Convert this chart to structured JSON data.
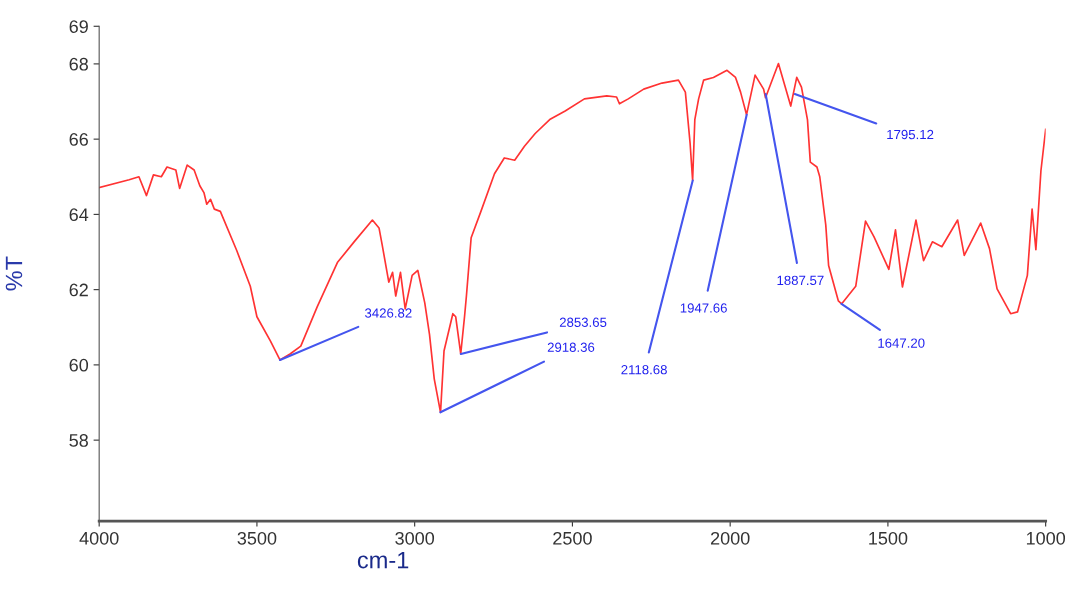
{
  "chart_data": {
    "type": "line",
    "xlabel": "cm-1",
    "ylabel": "%T",
    "xlim": [
      4000,
      1000
    ],
    "ylim": [
      55.85,
      69
    ],
    "xticks": [
      4000,
      3500,
      3000,
      2500,
      2000,
      1500,
      1000
    ],
    "yticks": [
      58,
      60,
      62,
      64,
      66,
      68,
      69
    ],
    "grid": false,
    "marker": "none",
    "line_style": "solid",
    "series": [
      {
        "color": "#ff3333",
        "x": [
          4000,
          3905,
          3874,
          3850,
          3828,
          3803,
          3785,
          3757,
          3745,
          3721,
          3699,
          3681,
          3668,
          3659,
          3647,
          3635,
          3616,
          3564,
          3521,
          3500,
          3457,
          3427,
          3395,
          3361,
          3309,
          3245,
          3192,
          3134,
          3113,
          3103,
          3082,
          3070,
          3060,
          3045,
          3030,
          3008,
          2990,
          2968,
          2953,
          2938,
          2918,
          2907,
          2879,
          2870,
          2854,
          2842,
          2836,
          2821,
          2790,
          2747,
          2716,
          2683,
          2652,
          2618,
          2572,
          2523,
          2462,
          2391,
          2360,
          2351,
          2323,
          2274,
          2216,
          2164,
          2142,
          2127,
          2119,
          2112,
          2100,
          2084,
          2053,
          2010,
          1983,
          1967,
          1948,
          1921,
          1894,
          1888,
          1847,
          1808,
          1789,
          1774,
          1755,
          1746,
          1725,
          1716,
          1697,
          1688,
          1657,
          1647,
          1602,
          1571,
          1544,
          1497,
          1476,
          1454,
          1411,
          1387,
          1359,
          1329,
          1279,
          1258,
          1206,
          1178,
          1154,
          1111,
          1089,
          1058,
          1043,
          1031,
          1015,
          1000
        ],
        "values": [
          64.71,
          64.92,
          65.0,
          64.5,
          65.05,
          65.0,
          65.26,
          65.18,
          64.69,
          65.31,
          65.18,
          64.76,
          64.58,
          64.27,
          64.4,
          64.14,
          64.08,
          63.04,
          62.09,
          61.28,
          60.63,
          60.13,
          60.29,
          60.5,
          61.54,
          62.72,
          63.27,
          63.85,
          63.64,
          63.19,
          62.2,
          62.46,
          61.83,
          62.46,
          61.49,
          62.38,
          62.51,
          61.65,
          60.81,
          59.63,
          58.74,
          60.37,
          61.36,
          61.28,
          60.29,
          61.28,
          61.83,
          63.38,
          64.08,
          65.08,
          65.5,
          65.44,
          65.81,
          66.15,
          66.52,
          66.75,
          67.07,
          67.15,
          67.12,
          66.94,
          67.07,
          67.33,
          67.49,
          67.57,
          67.25,
          65.89,
          64.9,
          66.52,
          67.07,
          67.57,
          67.64,
          67.83,
          67.64,
          67.25,
          66.65,
          67.7,
          67.33,
          67.1,
          68.01,
          66.88,
          67.64,
          67.38,
          66.52,
          65.39,
          65.26,
          65.0,
          63.72,
          62.64,
          61.7,
          61.62,
          62.09,
          63.82,
          63.4,
          62.54,
          63.59,
          62.07,
          63.85,
          62.77,
          63.27,
          63.14,
          63.85,
          62.91,
          63.77,
          63.09,
          62.02,
          61.36,
          61.41,
          62.38,
          64.14,
          63.06,
          65.16,
          66.26
        ]
      }
    ],
    "annotations": [
      {
        "text": "3426.82",
        "x": 3426.82,
        "y": 60.13
      },
      {
        "text": "2918.36",
        "x": 2918.36,
        "y": 58.74
      },
      {
        "text": "2853.65",
        "x": 2853.65,
        "y": 60.29
      },
      {
        "text": "2118.68",
        "x": 2118.68,
        "y": 64.9
      },
      {
        "text": "1947.66",
        "x": 1947.66,
        "y": 66.65
      },
      {
        "text": "1887.57",
        "x": 1887.57,
        "y": 67.2
      },
      {
        "text": "1795.12",
        "x": 1795.12,
        "y": 67.2
      },
      {
        "text": "1647.20",
        "x": 1647.2,
        "y": 61.62
      }
    ]
  }
}
